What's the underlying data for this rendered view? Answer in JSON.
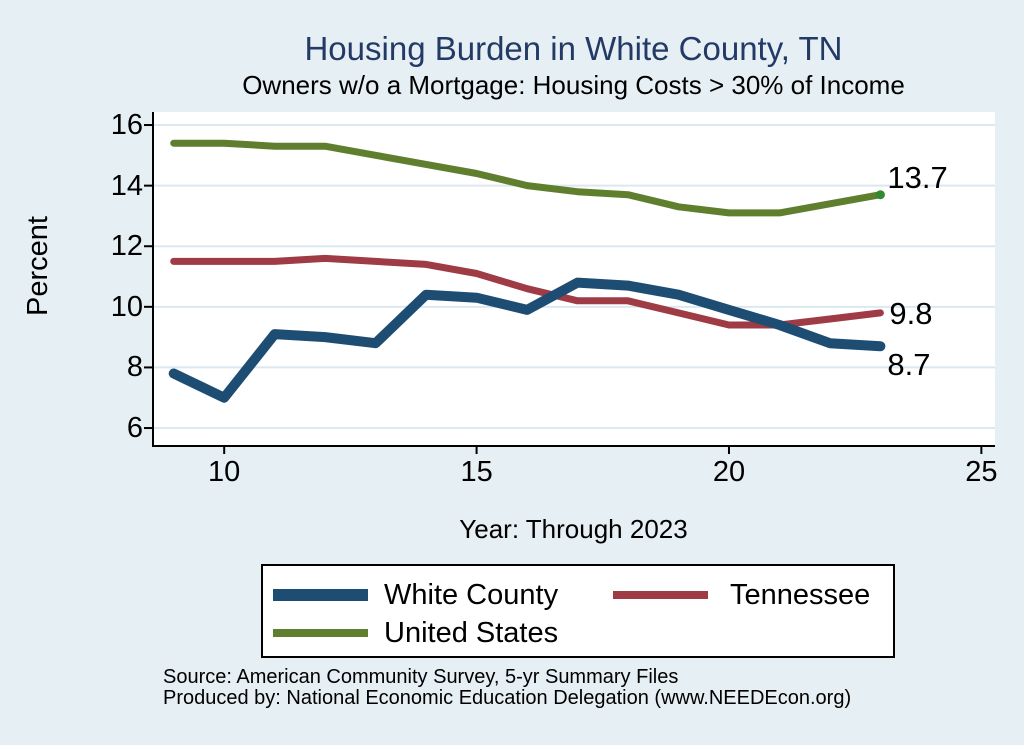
{
  "title": "Housing Burden in White County, TN",
  "subtitle": "Owners w/o a Mortgage: Housing Costs > 30% of Income",
  "colors": {
    "background": "#e6eff3",
    "plot_background": "#ffffff",
    "gridline": "#dce8f0",
    "axis": "#000000",
    "title_text": "#233a66",
    "white_county": "#1e4d74",
    "tennessee": "#9e3b44",
    "united_states": "#5f7f2e",
    "us_end_marker": "#2e8b2e"
  },
  "chart_data": {
    "type": "line",
    "x": [
      9,
      10,
      11,
      12,
      13,
      14,
      15,
      16,
      17,
      18,
      19,
      20,
      21,
      22,
      23
    ],
    "series": [
      {
        "name": "White County",
        "color_key": "white_county",
        "line_width": 10,
        "values": [
          7.8,
          7.0,
          9.1,
          9.0,
          8.8,
          10.4,
          10.3,
          9.9,
          10.8,
          10.7,
          10.4,
          9.9,
          9.4,
          8.8,
          8.7
        ]
      },
      {
        "name": "Tennessee",
        "color_key": "tennessee",
        "line_width": 7,
        "values": [
          11.5,
          11.5,
          11.5,
          11.6,
          11.5,
          11.4,
          11.1,
          10.6,
          10.2,
          10.2,
          9.8,
          9.4,
          9.4,
          9.6,
          9.8
        ]
      },
      {
        "name": "United States",
        "color_key": "united_states",
        "line_width": 7,
        "values": [
          15.4,
          15.4,
          15.3,
          15.3,
          15.0,
          14.7,
          14.4,
          14.0,
          13.8,
          13.7,
          13.3,
          13.1,
          13.1,
          13.4,
          13.7
        ]
      }
    ],
    "xlabel": "Year: Through 2023",
    "ylabel": "Percent",
    "x_ticks": [
      "10",
      "15",
      "20",
      "25"
    ],
    "y_ticks": [
      "16",
      "14",
      "12",
      "10",
      "8",
      "6"
    ],
    "xlim": [
      8.57,
      25.27
    ],
    "ylim": [
      5.44,
      16.43
    ],
    "grid": true,
    "legend_position": "bottom",
    "end_labels": [
      {
        "text": "13.7",
        "series": "United States"
      },
      {
        "text": "9.8",
        "series": "Tennessee"
      },
      {
        "text": "8.7",
        "series": "White County"
      }
    ]
  },
  "footer": {
    "source_line": "Source: American Community Survey, 5-yr Summary Files",
    "produced_line": "Produced by: National Economic Education Delegation (www.NEEDEcon.org)"
  }
}
